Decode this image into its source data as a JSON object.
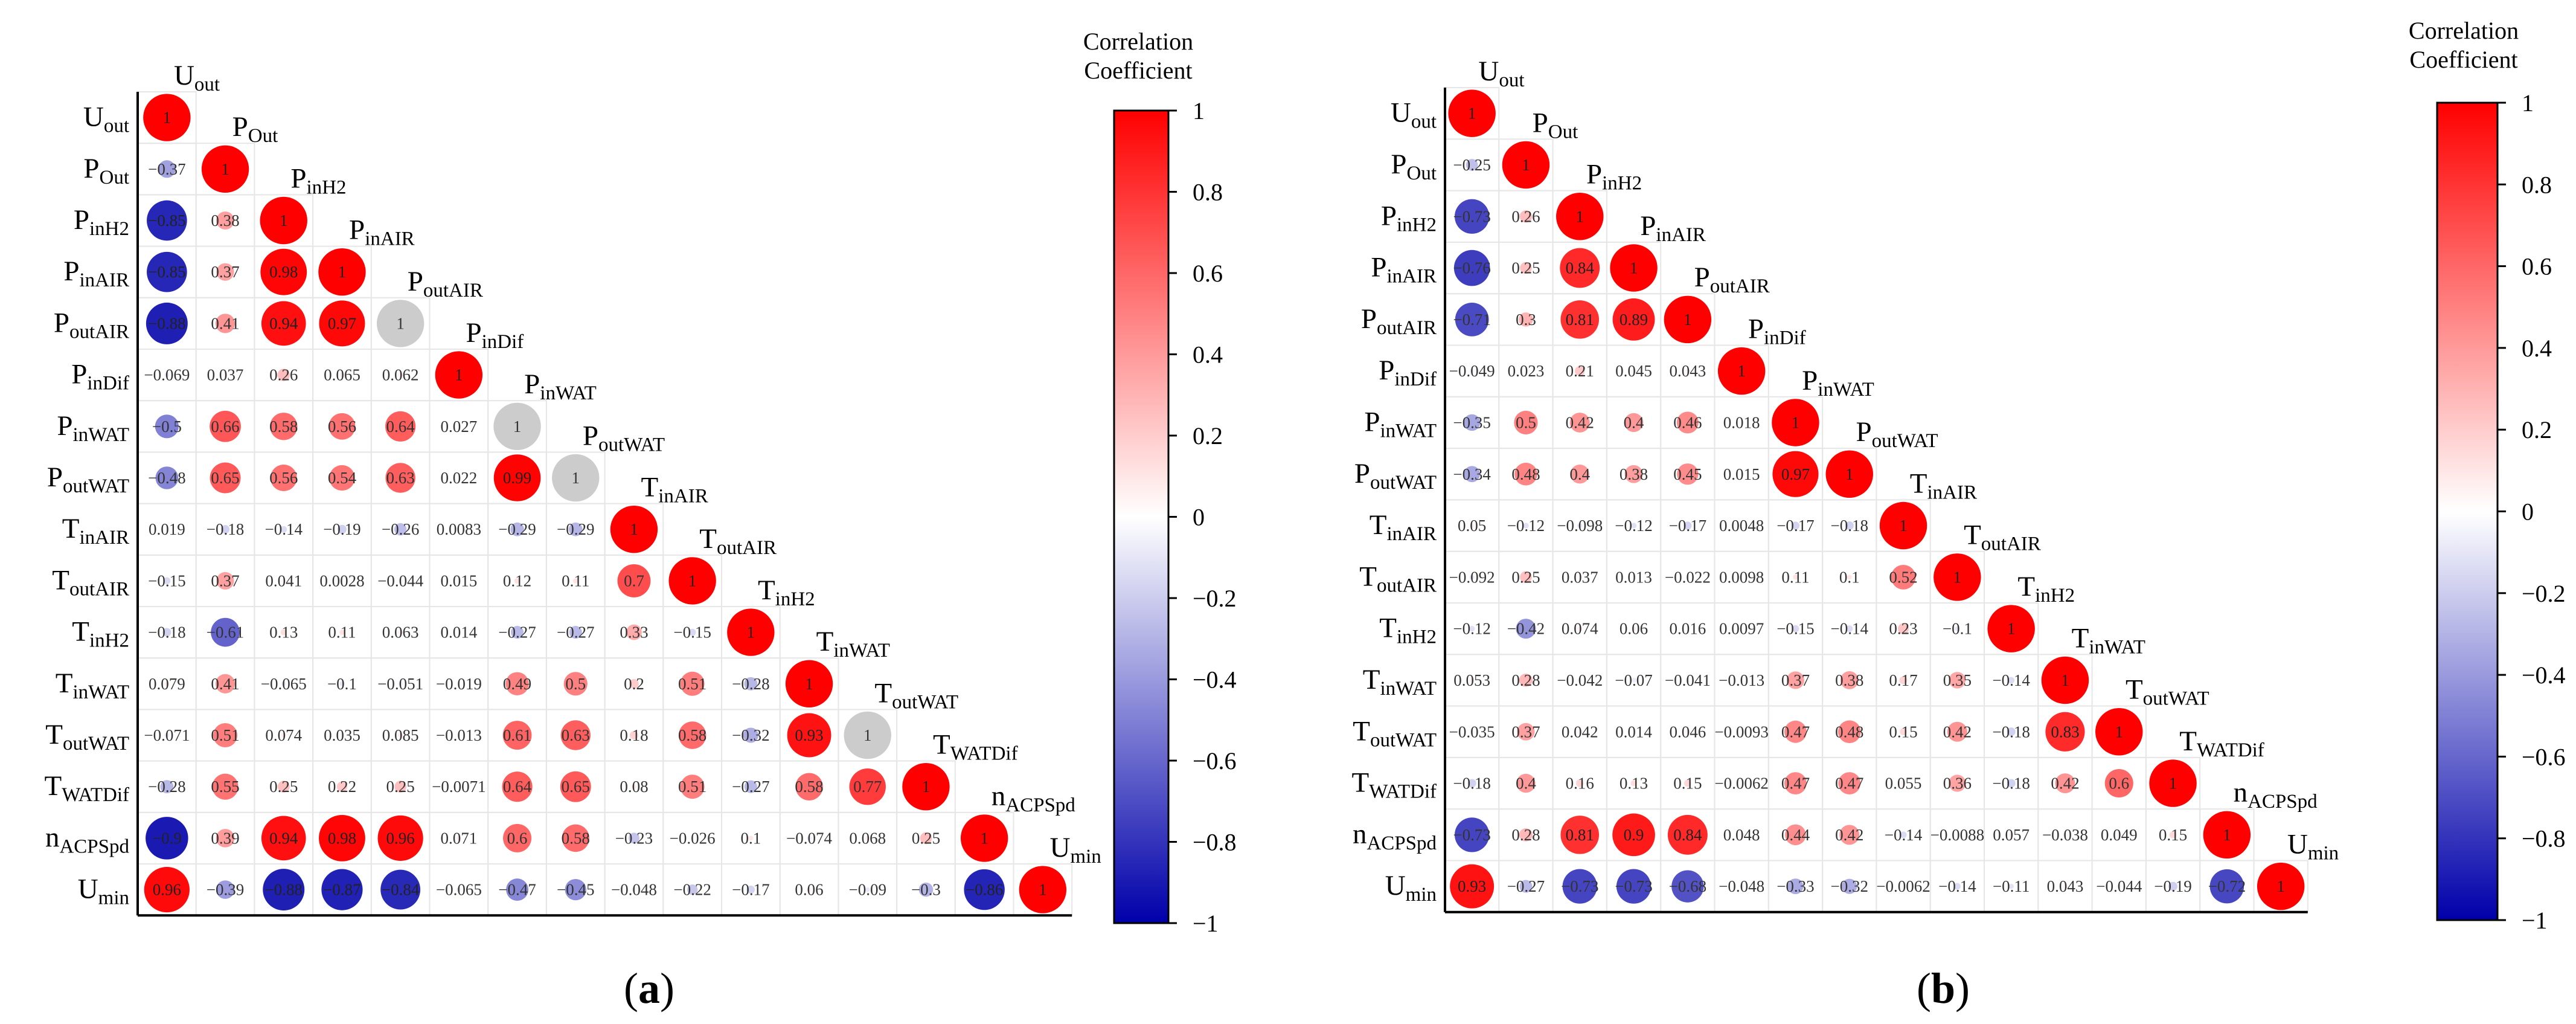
{
  "chart_data": [
    {
      "type": "heatmap",
      "panel_label": "a",
      "variables": [
        {
          "base": "U",
          "sub": "out"
        },
        {
          "base": "P",
          "sub": "Out"
        },
        {
          "base": "P",
          "sub": "inH2"
        },
        {
          "base": "P",
          "sub": "inAIR"
        },
        {
          "base": "P",
          "sub": "outAIR"
        },
        {
          "base": "P",
          "sub": "inDif"
        },
        {
          "base": "P",
          "sub": "inWAT"
        },
        {
          "base": "P",
          "sub": "outWAT"
        },
        {
          "base": "T",
          "sub": "inAIR"
        },
        {
          "base": "T",
          "sub": "outAIR"
        },
        {
          "base": "T",
          "sub": "inH2"
        },
        {
          "base": "T",
          "sub": "inWAT"
        },
        {
          "base": "T",
          "sub": "outWAT"
        },
        {
          "base": "T",
          "sub": "WATDif"
        },
        {
          "base": "n",
          "sub": "ACPSpd"
        },
        {
          "base": "U",
          "sub": "min"
        }
      ],
      "lower_triangle": [
        [
          1
        ],
        [
          -0.37,
          1
        ],
        [
          -0.85,
          0.38,
          1
        ],
        [
          -0.85,
          0.37,
          0.98,
          1
        ],
        [
          -0.88,
          0.41,
          0.94,
          0.97,
          1
        ],
        [
          -0.069,
          0.037,
          0.26,
          0.065,
          0.062,
          1
        ],
        [
          -0.5,
          0.66,
          0.58,
          0.56,
          0.64,
          0.027,
          1
        ],
        [
          -0.48,
          0.65,
          0.56,
          0.54,
          0.63,
          0.022,
          0.99,
          1
        ],
        [
          0.019,
          -0.18,
          -0.14,
          -0.19,
          -0.26,
          0.0083,
          -0.29,
          -0.29,
          1
        ],
        [
          -0.15,
          0.37,
          0.041,
          0.0028,
          -0.044,
          0.015,
          0.12,
          0.11,
          0.7,
          1
        ],
        [
          -0.18,
          -0.61,
          0.13,
          0.11,
          0.063,
          0.014,
          -0.27,
          -0.27,
          0.33,
          -0.15,
          1
        ],
        [
          0.079,
          0.41,
          -0.065,
          -0.1,
          -0.051,
          -0.019,
          0.49,
          0.5,
          0.2,
          0.51,
          -0.28,
          1
        ],
        [
          -0.071,
          0.51,
          0.074,
          0.035,
          0.085,
          -0.013,
          0.61,
          0.63,
          0.18,
          0.58,
          -0.32,
          0.93,
          1
        ],
        [
          -0.28,
          0.55,
          0.25,
          0.22,
          0.25,
          -0.0071,
          0.64,
          0.65,
          0.08,
          0.51,
          -0.27,
          0.58,
          0.77,
          1
        ],
        [
          -0.9,
          0.39,
          0.94,
          0.98,
          0.96,
          0.071,
          0.6,
          0.58,
          -0.23,
          -0.026,
          0.1,
          -0.074,
          0.068,
          0.25,
          1
        ],
        [
          0.96,
          -0.39,
          -0.88,
          -0.87,
          -0.84,
          -0.065,
          -0.47,
          -0.45,
          -0.048,
          -0.22,
          -0.17,
          0.06,
          -0.09,
          -0.3,
          -0.86,
          1
        ]
      ],
      "gray_diagonal": [
        4,
        6,
        7,
        12
      ],
      "colorbar": {
        "title_lines": [
          "Correlation",
          "Coefficient"
        ],
        "range": [
          -1,
          1
        ],
        "ticks": [
          "1",
          "0.8",
          "0.6",
          "0.4",
          "0.2",
          "0",
          "−0.2",
          "−0.4",
          "−0.6",
          "−0.8",
          "−1"
        ],
        "colors": {
          "positive": "#ff0000",
          "neutral": "#ffffff",
          "negative": "#0000aa",
          "gray": "#cccccc"
        }
      }
    },
    {
      "type": "heatmap",
      "panel_label": "b",
      "variables": [
        {
          "base": "U",
          "sub": "out"
        },
        {
          "base": "P",
          "sub": "Out"
        },
        {
          "base": "P",
          "sub": "inH2"
        },
        {
          "base": "P",
          "sub": "inAIR"
        },
        {
          "base": "P",
          "sub": "outAIR"
        },
        {
          "base": "P",
          "sub": "inDif"
        },
        {
          "base": "P",
          "sub": "inWAT"
        },
        {
          "base": "P",
          "sub": "outWAT"
        },
        {
          "base": "T",
          "sub": "inAIR"
        },
        {
          "base": "T",
          "sub": "outAIR"
        },
        {
          "base": "T",
          "sub": "inH2"
        },
        {
          "base": "T",
          "sub": "inWAT"
        },
        {
          "base": "T",
          "sub": "outWAT"
        },
        {
          "base": "T",
          "sub": "WATDif"
        },
        {
          "base": "n",
          "sub": "ACPSpd"
        },
        {
          "base": "U",
          "sub": "min"
        }
      ],
      "lower_triangle": [
        [
          1
        ],
        [
          -0.25,
          1
        ],
        [
          -0.73,
          0.26,
          1
        ],
        [
          -0.76,
          0.25,
          0.84,
          1
        ],
        [
          -0.71,
          0.3,
          0.81,
          0.89,
          1
        ],
        [
          -0.049,
          0.023,
          0.21,
          0.045,
          0.043,
          1
        ],
        [
          -0.35,
          0.5,
          0.42,
          0.4,
          0.46,
          0.018,
          1
        ],
        [
          -0.34,
          0.48,
          0.4,
          0.38,
          0.45,
          0.015,
          0.97,
          1
        ],
        [
          0.05,
          -0.12,
          -0.098,
          -0.12,
          -0.17,
          0.0048,
          -0.17,
          -0.18,
          1
        ],
        [
          -0.092,
          0.25,
          0.037,
          0.013,
          -0.022,
          0.0098,
          0.11,
          0.1,
          0.52,
          1
        ],
        [
          -0.12,
          -0.42,
          0.074,
          0.06,
          0.016,
          0.0097,
          -0.15,
          -0.14,
          0.23,
          -0.1,
          1
        ],
        [
          0.053,
          0.28,
          -0.042,
          -0.07,
          -0.041,
          -0.013,
          0.37,
          0.38,
          0.17,
          0.35,
          -0.14,
          1
        ],
        [
          -0.035,
          0.37,
          0.042,
          0.014,
          0.046,
          -0.0093,
          0.47,
          0.48,
          0.15,
          0.42,
          -0.18,
          0.83,
          1
        ],
        [
          -0.18,
          0.4,
          0.16,
          0.13,
          0.15,
          -0.0062,
          0.47,
          0.47,
          0.055,
          0.36,
          -0.18,
          0.42,
          0.6,
          1
        ],
        [
          -0.73,
          0.28,
          0.81,
          0.9,
          0.84,
          0.048,
          0.44,
          0.42,
          -0.14,
          -0.0088,
          0.057,
          -0.038,
          0.049,
          0.15,
          1
        ],
        [
          0.93,
          -0.27,
          -0.73,
          -0.73,
          -0.68,
          -0.048,
          -0.33,
          -0.32,
          -0.0062,
          -0.14,
          -0.11,
          0.043,
          -0.044,
          -0.19,
          -0.72,
          1
        ]
      ],
      "gray_diagonal": [],
      "colorbar": {
        "title_lines": [
          "Correlation",
          "Coefficient"
        ],
        "range": [
          -1,
          1
        ],
        "ticks": [
          "1",
          "0.8",
          "0.6",
          "0.4",
          "0.2",
          "0",
          "−0.2",
          "−0.4",
          "−0.6",
          "−0.8",
          "−1"
        ],
        "colors": {
          "positive": "#ff0000",
          "neutral": "#ffffff",
          "negative": "#0000aa",
          "gray": "#cccccc"
        }
      }
    }
  ]
}
